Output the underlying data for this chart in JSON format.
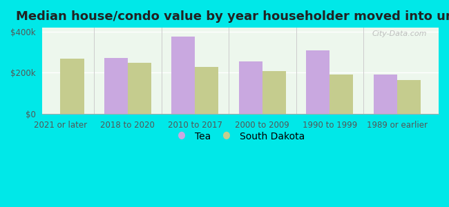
{
  "title": "Median house/condo value by year householder moved into unit",
  "categories": [
    "2021 or later",
    "2018 to 2020",
    "2010 to 2017",
    "2000 to 2009",
    "1990 to 1999",
    "1989 or earlier"
  ],
  "tea_values": [
    0,
    272000,
    375000,
    255000,
    310000,
    192000
  ],
  "sd_values": [
    270000,
    250000,
    228000,
    210000,
    193000,
    165000
  ],
  "tea_color": "#c9a8e0",
  "sd_color": "#c5cc8e",
  "background_color": "#00e8e8",
  "plot_bg_top": "#e8f5e8",
  "plot_bg_bottom": "#f8fff8",
  "ylim": [
    0,
    420000
  ],
  "ytick_labels": [
    "$0",
    "$200k",
    "$400k"
  ],
  "ytick_vals": [
    0,
    200000,
    400000
  ],
  "bar_width": 0.35,
  "watermark": "City-Data.com",
  "legend_tea": "Tea",
  "legend_sd": "South Dakota",
  "title_fontsize": 13,
  "tick_fontsize": 8.5,
  "legend_fontsize": 10
}
